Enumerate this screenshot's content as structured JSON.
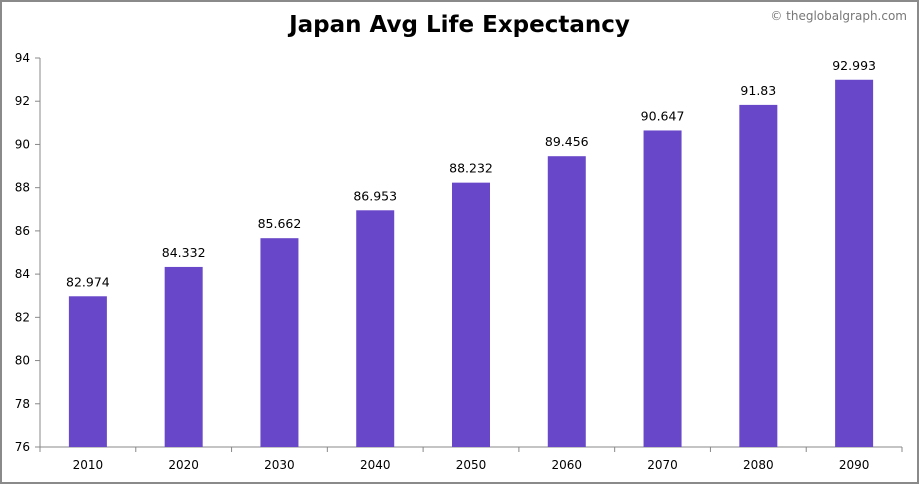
{
  "watermark": "© theglobalgraph.com",
  "chart_data": {
    "type": "bar",
    "title": "Japan Avg Life Expectancy",
    "xlabel": "",
    "ylabel": "",
    "categories": [
      "2010",
      "2020",
      "2030",
      "2040",
      "2050",
      "2060",
      "2070",
      "2080",
      "2090"
    ],
    "values": [
      82.974,
      84.332,
      85.662,
      86.953,
      88.232,
      89.456,
      90.647,
      91.83,
      92.993
    ],
    "data_labels": [
      "82.974",
      "84.332",
      "85.662",
      "86.953",
      "88.232",
      "89.456",
      "90.647",
      "91.83",
      "92.993"
    ],
    "ylim": [
      76,
      94
    ],
    "yticks": [
      76,
      78,
      80,
      82,
      84,
      86,
      88,
      90,
      92,
      94
    ],
    "bar_color": "#6847C8",
    "grid": false,
    "legend": false
  }
}
